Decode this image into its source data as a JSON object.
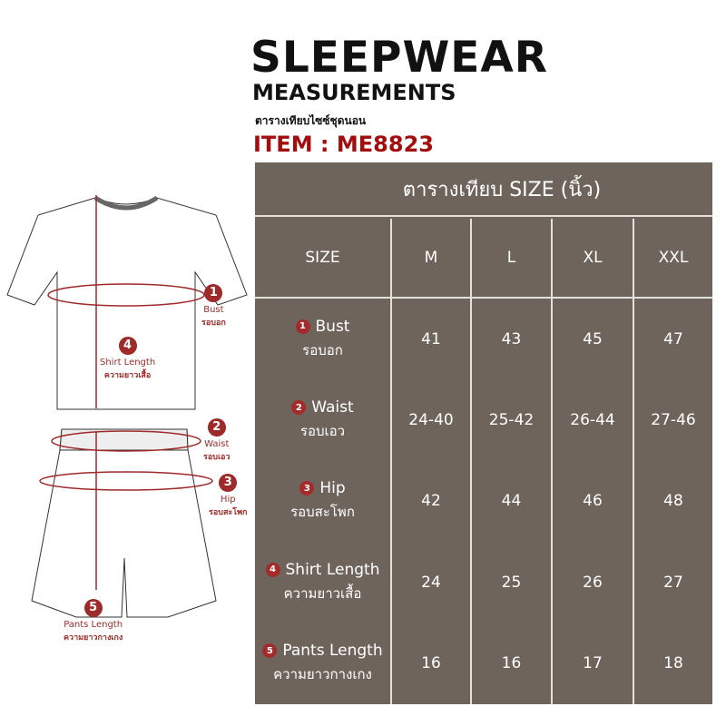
{
  "header": {
    "title": "SLEEPWEAR",
    "subtitle": "MEASUREMENTS",
    "thai_subtitle": "ตารางเทียบไซซ์ชุดนอน",
    "item": "ITEM : ME8823"
  },
  "colors": {
    "table_bg": "#6f645b",
    "accent": "#a30d0d"
  },
  "table": {
    "title": "ตารางเทียบ SIZE (นิ้ว)",
    "columns": [
      "SIZE",
      "M",
      "L",
      "XL",
      "XXL"
    ],
    "rows": [
      {
        "num": "1",
        "label": "Bust",
        "thai": "รอบอก",
        "values": [
          "41",
          "43",
          "45",
          "47"
        ]
      },
      {
        "num": "2",
        "label": "Waist",
        "thai": "รอบเอว",
        "values": [
          "24-40",
          "25-42",
          "26-44",
          "27-46"
        ]
      },
      {
        "num": "3",
        "label": "Hip",
        "thai": "รอบสะโพก",
        "values": [
          "42",
          "44",
          "46",
          "48"
        ]
      },
      {
        "num": "4",
        "label": "Shirt Length",
        "thai": "ความยาวเสื้อ",
        "values": [
          "24",
          "25",
          "26",
          "27"
        ]
      },
      {
        "num": "5",
        "label": "Pants Length",
        "thai": "ความยาวกางเกง",
        "values": [
          "16",
          "16",
          "17",
          "18"
        ]
      }
    ]
  },
  "diagram": {
    "annotations": [
      {
        "num": "1",
        "label": "Bust",
        "thai": "รอบอก"
      },
      {
        "num": "2",
        "label": "Waist",
        "thai": "รอบเอว"
      },
      {
        "num": "3",
        "label": "Hip",
        "thai": "รอบสะโพก"
      },
      {
        "num": "4",
        "label": "Shirt Length",
        "thai": "ความยาวเสื้อ"
      },
      {
        "num": "5",
        "label": "Pants Length",
        "thai": "ความยาวกางเกง"
      }
    ]
  }
}
